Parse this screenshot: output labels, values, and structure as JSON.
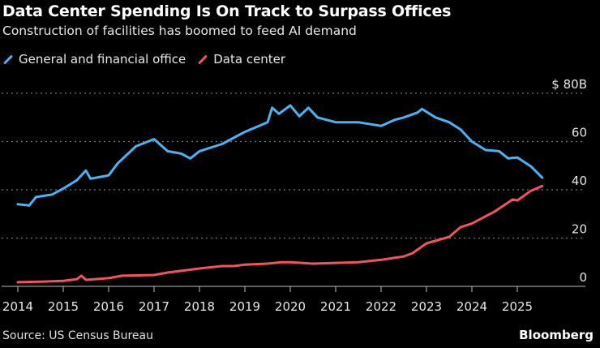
{
  "header": {
    "title": "Data Center Spending Is On Track to Surpass Offices",
    "subtitle": "Construction of facilities has boomed to feed AI demand"
  },
  "footer": {
    "source": "Source: US Census Bureau",
    "logo": "Bloomberg"
  },
  "chart_data": {
    "type": "line",
    "title": "Data Center Spending Is On Track to Surpass Offices",
    "subtitle": "Construction of facilities has boomed to feed AI demand",
    "xlabel": "",
    "ylabel": "",
    "ylim": [
      0,
      80
    ],
    "xlim": [
      2014,
      2025.6
    ],
    "y_ticks": [
      {
        "value": 80,
        "label": "$ 80B"
      },
      {
        "value": 60,
        "label": "60"
      },
      {
        "value": 40,
        "label": "40"
      },
      {
        "value": 20,
        "label": "20"
      },
      {
        "value": 0,
        "label": "0"
      }
    ],
    "x_ticks": [
      "2014",
      "2015",
      "2016",
      "2017",
      "2018",
      "2019",
      "2020",
      "2021",
      "2022",
      "2023",
      "2024",
      "2025"
    ],
    "grid": true,
    "legend_position": "top-left",
    "series": [
      {
        "name": "General and financial office",
        "color": "#4ab3f4",
        "x": [
          2014,
          2014.25,
          2014.4,
          2014.75,
          2015,
          2015.3,
          2015.5,
          2015.6,
          2016,
          2016.2,
          2016.6,
          2017,
          2017.3,
          2017.6,
          2017.8,
          2018,
          2018.5,
          2018.8,
          2019,
          2019.5,
          2019.6,
          2019.75,
          2020,
          2020.2,
          2020.4,
          2020.6,
          2021,
          2021.5,
          2022,
          2022.3,
          2022.5,
          2022.8,
          2022.9,
          2023.2,
          2023.5,
          2023.75,
          2024,
          2024.3,
          2024.6,
          2024.8,
          2025,
          2025.3,
          2025.55
        ],
        "y": [
          34,
          33.5,
          37,
          38,
          40.5,
          44,
          48,
          44.6,
          46,
          51,
          58,
          61,
          56,
          55,
          53,
          56,
          59,
          62,
          64,
          68,
          74,
          71.5,
          75,
          70.5,
          74,
          70,
          68,
          68,
          66.5,
          69,
          70,
          72,
          73.5,
          70,
          68,
          65,
          60,
          56.5,
          56,
          53,
          53.4,
          49.7,
          45
        ]
      },
      {
        "name": "Data center",
        "color": "#f2535e",
        "x": [
          2014,
          2014.5,
          2015,
          2015.3,
          2015.4,
          2015.5,
          2016,
          2016.3,
          2017,
          2017.3,
          2018,
          2018.5,
          2018.75,
          2019,
          2019.5,
          2019.8,
          2020,
          2020.5,
          2021,
          2021.5,
          2022,
          2022.5,
          2022.7,
          2023,
          2023.5,
          2023.75,
          2024,
          2024.5,
          2024.9,
          2025,
          2025.3,
          2025.55
        ],
        "y": [
          1.7,
          1.9,
          2.3,
          3,
          4.4,
          2.7,
          3.4,
          4.4,
          4.7,
          5.7,
          7.4,
          8.4,
          8.4,
          9,
          9.4,
          10,
          10,
          9.4,
          9.7,
          10,
          11,
          12.4,
          13.8,
          17.8,
          20.5,
          24.5,
          26,
          31,
          36,
          35.6,
          39.6,
          41.6
        ]
      }
    ]
  }
}
